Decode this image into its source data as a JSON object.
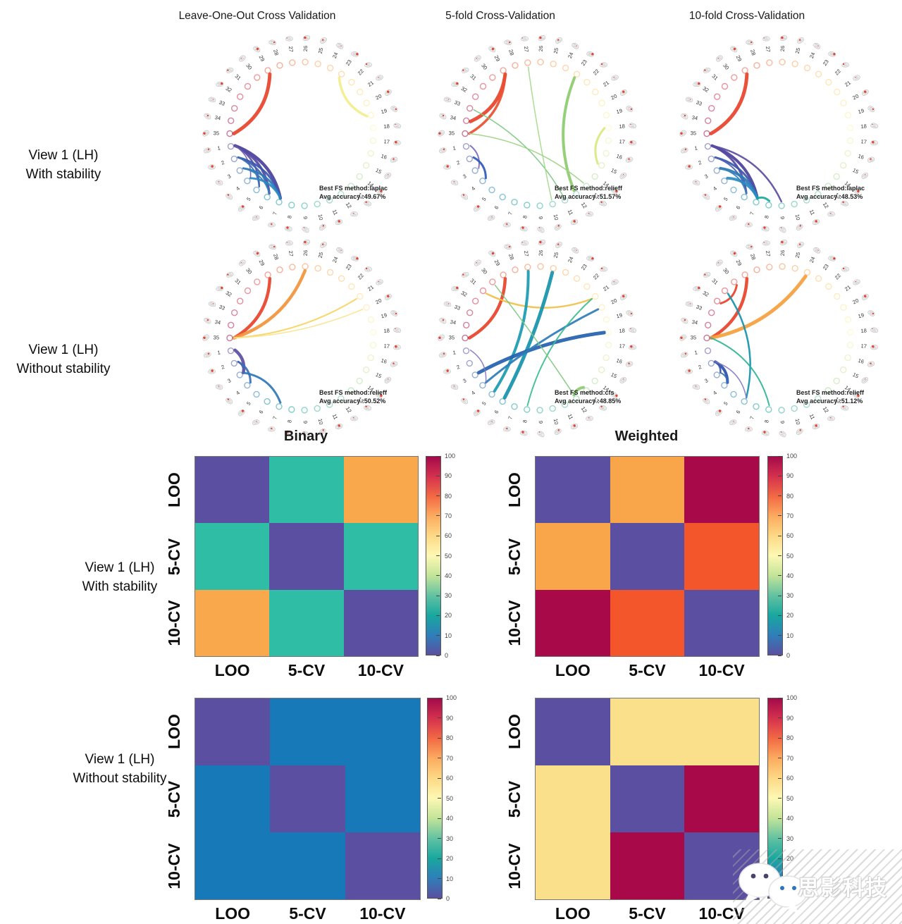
{
  "chart_data": {
    "type": "multi_panel",
    "circos": {
      "column_titles": [
        "Leave-One-Out Cross Validation",
        "5-fold Cross-Validation",
        "10-fold Cross-Validation"
      ],
      "node_count": 35,
      "node_label_min": 1,
      "node_label_max": 35,
      "rows": [
        {
          "label_line1": "View 1 (LH)",
          "label_line2": "With stability",
          "plots": [
            {
              "annotation_line1": "Best FS method:laplac",
              "annotation_line2": "Avg accuracy :49.67%",
              "edges": [
                [
                  29,
                  35,
                  "#e8422a",
                  5
                ],
                [
                  23,
                  19,
                  "#f2ee8a",
                  3.5
                ],
                [
                  1,
                  7,
                  "#4a3f9b",
                  4.5
                ],
                [
                  1,
                  6,
                  "#54489f",
                  3.5
                ],
                [
                  1,
                  5,
                  "#5b4ea1",
                  2.5
                ],
                [
                  1,
                  4,
                  "#6a5bb0",
                  1.5
                ],
                [
                  2,
                  7,
                  "#3a57ab",
                  3
                ],
                [
                  2,
                  6,
                  "#3f62b1",
                  2.5
                ],
                [
                  2,
                  5,
                  "#3a6fb5",
                  2
                ],
                [
                  3,
                  7,
                  "#2d77b6",
                  3
                ],
                [
                  3,
                  6,
                  "#3381bb",
                  2
                ],
                [
                  4,
                  7,
                  "#2b8ac3",
                  3
                ]
              ]
            },
            {
              "annotation_line1": "Best FS method:relieff",
              "annotation_line2": "Avg accuracy :51.57%",
              "edges": [
                [
                  29,
                  34,
                  "#e8422a",
                  5
                ],
                [
                  29,
                  35,
                  "#ea4f30",
                  3.5
                ],
                [
                  33,
                  11,
                  "#7cc87f",
                  1.5
                ],
                [
                  27,
                  10,
                  "#a5d98c",
                  1.5
                ],
                [
                  23,
                  12,
                  "#8ccb6f",
                  4
                ],
                [
                  35,
                  13,
                  "#9ed284",
                  1.5
                ],
                [
                  18,
                  15,
                  "#d9e97e",
                  3
                ],
                [
                  1,
                  3,
                  "#7a6bbf",
                  2
                ],
                [
                  2,
                  4,
                  "#2f58b8",
                  3
                ]
              ]
            },
            {
              "annotation_line1": "Best FS method:laplac",
              "annotation_line2": "Avg accuracy :48.53%",
              "edges": [
                [
                  29,
                  35,
                  "#e8422a",
                  5
                ],
                [
                  1,
                  7,
                  "#4a3f9b",
                  4
                ],
                [
                  1,
                  6,
                  "#54489f",
                  3
                ],
                [
                  1,
                  9,
                  "#5b4ea1",
                  2.5
                ],
                [
                  2,
                  7,
                  "#3a57ab",
                  3
                ],
                [
                  2,
                  6,
                  "#4a5fae",
                  2
                ],
                [
                  3,
                  7,
                  "#2d77b6",
                  4
                ],
                [
                  4,
                  7,
                  "#2b8ac3",
                  4
                ],
                [
                  3,
                  6,
                  "#3381bb",
                  2
                ],
                [
                  7,
                  8,
                  "#18a99d",
                  3
                ]
              ]
            }
          ]
        },
        {
          "label_line1": "View 1 (LH)",
          "label_line2": "Without stability",
          "plots": [
            {
              "annotation_line1": "Best FS method:relieff",
              "annotation_line2": "Avg accuracy :50.52%",
              "edges": [
                [
                  29,
                  35,
                  "#e8422a",
                  4.5
                ],
                [
                  26,
                  35,
                  "#f3923b",
                  4.5
                ],
                [
                  21,
                  35,
                  "#f7d45e",
                  2
                ],
                [
                  20,
                  35,
                  "#f9e38a",
                  1.5
                ],
                [
                  1,
                  3,
                  "#5b4ea1",
                  4.5
                ],
                [
                  2,
                  4,
                  "#3a6fb5",
                  3
                ],
                [
                  3,
                  7,
                  "#2d77b6",
                  3
                ],
                [
                  2,
                  3,
                  "#4a5fae",
                  2
                ]
              ]
            },
            {
              "annotation_line1": "Best FS method:cfs",
              "annotation_line2": "Avg accuracy :48.85%",
              "edges": [
                [
                  29,
                  35,
                  "#e8422a",
                  4.5
                ],
                [
                  31,
                  21,
                  "#f0c04a",
                  2.5
                ],
                [
                  25,
                  6,
                  "#1693ad",
                  5
                ],
                [
                  27,
                  5,
                  "#1a9ab0",
                  4
                ],
                [
                  3,
                  18,
                  "#2361ae",
                  5
                ],
                [
                  4,
                  20,
                  "#2e7cb8",
                  3
                ],
                [
                  1,
                  4,
                  "#8474c4",
                  1.5
                ],
                [
                  8,
                  21,
                  "#3dbd8e",
                  2
                ],
                [
                  30,
                  12,
                  "#7cc87f",
                  1.5
                ],
                [
                  12,
                  13,
                  "#8ccb6f",
                  4
                ]
              ]
            },
            {
              "annotation_line1": "Best FS method:relieff",
              "annotation_line2": "Avg accuracy :51.12%",
              "edges": [
                [
                  29,
                  35,
                  "#e8422a",
                  4.5
                ],
                [
                  30,
                  32,
                  "#e8422a",
                  3
                ],
                [
                  24,
                  35,
                  "#f5a03c",
                  5
                ],
                [
                  31,
                  6,
                  "#1693ad",
                  2.5
                ],
                [
                  35,
                  8,
                  "#2eb494",
                  2
                ],
                [
                  2,
                  4,
                  "#2b4fae",
                  4
                ],
                [
                  2,
                  3,
                  "#3a57ab",
                  2.5
                ],
                [
                  2,
                  6,
                  "#8474c4",
                  1.5
                ],
                [
                  3,
                  4,
                  "#3a6fb5",
                  2
                ]
              ]
            }
          ]
        }
      ]
    },
    "heatmaps": {
      "titles": [
        "Binary",
        "Weighted"
      ],
      "axis_labels": [
        "LOO",
        "5-CV",
        "10-CV"
      ],
      "colorbar_ticks": [
        0,
        10,
        20,
        30,
        40,
        50,
        60,
        70,
        80,
        90,
        100
      ],
      "colorbar_min": 0,
      "colorbar_max": 100,
      "colorbar_gradient": [
        "#5a4fa0",
        "#2f7fb9",
        "#18a89e",
        "#63c2a2",
        "#c3e498",
        "#fdf8b4",
        "#fdd985",
        "#fcab60",
        "#f26944",
        "#d5314e",
        "#a30a49"
      ],
      "value_colors": {
        "0": "#5a4fa0",
        "11": "#1779b8",
        "22": "#2fbea5",
        "58": "#fae08b",
        "67": "#f9a84b",
        "68": "#f9a64a",
        "80": "#f4562b",
        "97": "#a80948"
      },
      "rows": [
        {
          "label_line1": "View 1 (LH)",
          "label_line2": "With stability",
          "matrices": [
            {
              "title": "Binary",
              "values": [
                [
                  0,
                  22,
                  67
                ],
                [
                  22,
                  0,
                  22
                ],
                [
                  67,
                  22,
                  0
                ]
              ]
            },
            {
              "title": "Weighted",
              "values": [
                [
                  0,
                  68,
                  97
                ],
                [
                  68,
                  0,
                  80
                ],
                [
                  97,
                  80,
                  0
                ]
              ]
            }
          ]
        },
        {
          "label_line1": "View 1 (LH)",
          "label_line2": "Without stability",
          "matrices": [
            {
              "title": "Binary",
              "values": [
                [
                  0,
                  11,
                  11
                ],
                [
                  11,
                  0,
                  11
                ],
                [
                  11,
                  11,
                  0
                ]
              ]
            },
            {
              "title": "Weighted",
              "values": [
                [
                  0,
                  58,
                  58
                ],
                [
                  58,
                  0,
                  97
                ],
                [
                  58,
                  97,
                  0
                ]
              ]
            }
          ]
        }
      ]
    },
    "watermark": {
      "text": "思影科技",
      "icon": "wechat-ghost-icon"
    }
  }
}
